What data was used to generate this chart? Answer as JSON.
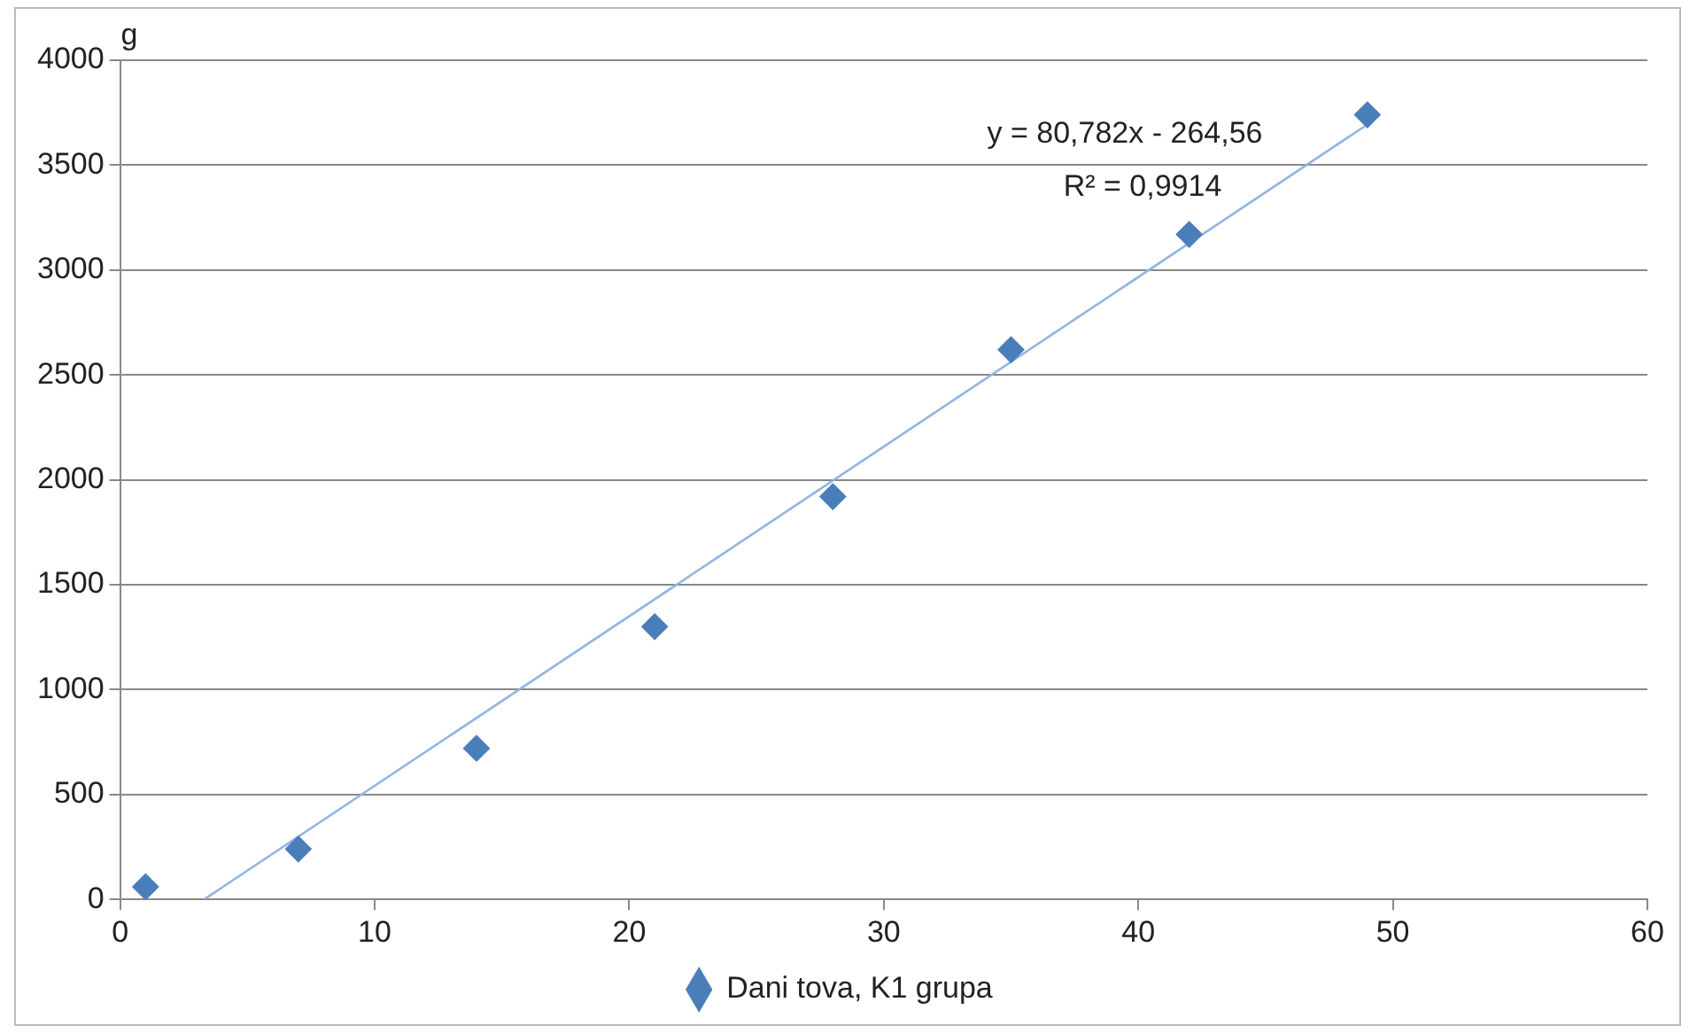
{
  "chart_data": {
    "type": "scatter",
    "ylabel": "g",
    "xlim": [
      0,
      60
    ],
    "xticks": [
      0,
      10,
      20,
      30,
      40,
      50,
      60
    ],
    "ylim": [
      0,
      4000
    ],
    "yticks": [
      0,
      500,
      1000,
      1500,
      2000,
      2500,
      3000,
      3500,
      4000
    ],
    "grid": "y",
    "legend": "bottom",
    "marker": "diamond",
    "series": [
      {
        "name": "Dani tova, K1 grupa",
        "color": "#4a7ebb",
        "x": [
          1,
          7,
          14,
          21,
          28,
          35,
          42,
          49
        ],
        "values": [
          60,
          240,
          720,
          1300,
          1920,
          2620,
          3170,
          3740
        ]
      },
      {
        "type": "line",
        "color": "#8eb4e3",
        "marker": "none",
        "x": [
          3.3,
          49
        ],
        "values": [
          0,
          3694
        ]
      }
    ],
    "annotations": [
      "y = 80,782x - 264,56",
      "R² = 0,9914"
    ]
  }
}
